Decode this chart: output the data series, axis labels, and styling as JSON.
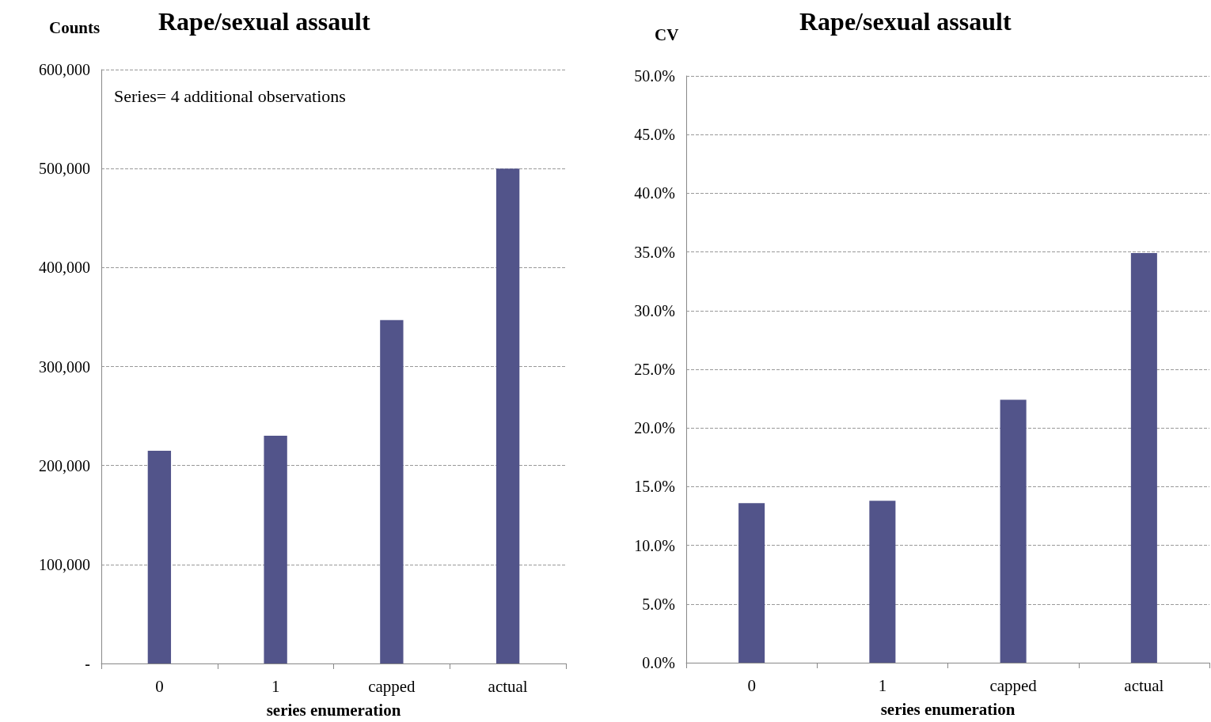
{
  "chart_data": [
    {
      "type": "bar",
      "title": "Rape/sexual assault",
      "ylabel": "Counts",
      "xlabel": "series enumeration",
      "annotations": [
        "Series= 4 additional observations"
      ],
      "categories": [
        "0",
        "1",
        "capped",
        "actual"
      ],
      "series": [
        {
          "color": "#52548a",
          "values": [
            215000,
            230000,
            347000,
            500000
          ]
        }
      ],
      "ylim": [
        0,
        600000
      ],
      "yticks": [
        {
          "value": 0,
          "label": "-"
        },
        {
          "value": 100000,
          "label": "100,000"
        },
        {
          "value": 200000,
          "label": "200,000"
        },
        {
          "value": 300000,
          "label": "300,000"
        },
        {
          "value": 400000,
          "label": "400,000"
        },
        {
          "value": 500000,
          "label": "500,000"
        },
        {
          "value": 600000,
          "label": "600,000"
        }
      ],
      "grid": "y"
    },
    {
      "type": "bar",
      "title": "Rape/sexual assault",
      "ylabel": "CV",
      "xlabel": "series enumeration",
      "categories": [
        "0",
        "1",
        "capped",
        "actual"
      ],
      "series": [
        {
          "color": "#52548a",
          "values": [
            13.6,
            13.8,
            22.4,
            34.9
          ]
        }
      ],
      "ylim": [
        0,
        50
      ],
      "yticks": [
        {
          "value": 0,
          "label": "0.0%"
        },
        {
          "value": 5,
          "label": "5.0%"
        },
        {
          "value": 10,
          "label": "10.0%"
        },
        {
          "value": 15,
          "label": "15.0%"
        },
        {
          "value": 20,
          "label": "20.0%"
        },
        {
          "value": 25,
          "label": "25.0%"
        },
        {
          "value": 30,
          "label": "30.0%"
        },
        {
          "value": 35,
          "label": "35.0%"
        },
        {
          "value": 40,
          "label": "40.0%"
        },
        {
          "value": 45,
          "label": "45.0%"
        },
        {
          "value": 50,
          "label": "50.0%"
        }
      ],
      "grid": "y"
    }
  ]
}
